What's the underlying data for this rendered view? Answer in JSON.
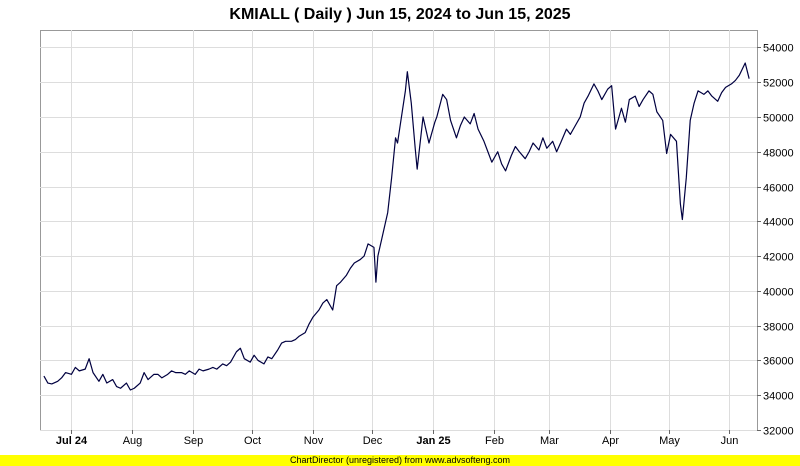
{
  "chart_data": {
    "type": "line",
    "title": "KMIALL ( Daily ) Jun 15, 2024 to Jun 15, 2025",
    "xlabel": "",
    "ylabel": "",
    "x_range": [
      "2024-06-15",
      "2025-06-15"
    ],
    "ylim": [
      32000,
      55000
    ],
    "y_ticks": [
      32000,
      34000,
      36000,
      38000,
      40000,
      42000,
      44000,
      46000,
      48000,
      50000,
      52000,
      54000
    ],
    "x_ticks": [
      {
        "date": "2024-07-01",
        "label": "Jul 24",
        "bold": true
      },
      {
        "date": "2024-08-01",
        "label": "Aug",
        "bold": false
      },
      {
        "date": "2024-09-01",
        "label": "Sep",
        "bold": false
      },
      {
        "date": "2024-10-01",
        "label": "Oct",
        "bold": false
      },
      {
        "date": "2024-11-01",
        "label": "Nov",
        "bold": false
      },
      {
        "date": "2024-12-01",
        "label": "Dec",
        "bold": false
      },
      {
        "date": "2025-01-01",
        "label": "Jan 25",
        "bold": true
      },
      {
        "date": "2025-02-01",
        "label": "Feb",
        "bold": false
      },
      {
        "date": "2025-03-01",
        "label": "Mar",
        "bold": false
      },
      {
        "date": "2025-04-01",
        "label": "Apr",
        "bold": false
      },
      {
        "date": "2025-05-01",
        "label": "May",
        "bold": false
      },
      {
        "date": "2025-06-01",
        "label": "Jun",
        "bold": false
      }
    ],
    "grid": true,
    "line_color": "#000040",
    "series": [
      {
        "points": [
          [
            "2024-06-17",
            35100
          ],
          [
            "2024-06-19",
            34700
          ],
          [
            "2024-06-21",
            34650
          ],
          [
            "2024-06-24",
            34800
          ],
          [
            "2024-06-26",
            35000
          ],
          [
            "2024-06-28",
            35300
          ],
          [
            "2024-07-01",
            35200
          ],
          [
            "2024-07-03",
            35600
          ],
          [
            "2024-07-05",
            35400
          ],
          [
            "2024-07-08",
            35500
          ],
          [
            "2024-07-10",
            36100
          ],
          [
            "2024-07-12",
            35300
          ],
          [
            "2024-07-15",
            34800
          ],
          [
            "2024-07-17",
            35200
          ],
          [
            "2024-07-19",
            34700
          ],
          [
            "2024-07-22",
            34900
          ],
          [
            "2024-07-24",
            34500
          ],
          [
            "2024-07-26",
            34400
          ],
          [
            "2024-07-29",
            34700
          ],
          [
            "2024-07-31",
            34300
          ],
          [
            "2024-08-02",
            34400
          ],
          [
            "2024-08-05",
            34700
          ],
          [
            "2024-08-07",
            35300
          ],
          [
            "2024-08-09",
            34900
          ],
          [
            "2024-08-12",
            35200
          ],
          [
            "2024-08-14",
            35200
          ],
          [
            "2024-08-16",
            35000
          ],
          [
            "2024-08-19",
            35200
          ],
          [
            "2024-08-21",
            35400
          ],
          [
            "2024-08-23",
            35300
          ],
          [
            "2024-08-26",
            35300
          ],
          [
            "2024-08-28",
            35200
          ],
          [
            "2024-08-30",
            35400
          ],
          [
            "2024-09-02",
            35200
          ],
          [
            "2024-09-04",
            35500
          ],
          [
            "2024-09-06",
            35400
          ],
          [
            "2024-09-09",
            35500
          ],
          [
            "2024-09-11",
            35600
          ],
          [
            "2024-09-13",
            35500
          ],
          [
            "2024-09-16",
            35800
          ],
          [
            "2024-09-18",
            35700
          ],
          [
            "2024-09-20",
            35900
          ],
          [
            "2024-09-23",
            36500
          ],
          [
            "2024-09-25",
            36700
          ],
          [
            "2024-09-27",
            36100
          ],
          [
            "2024-09-30",
            35900
          ],
          [
            "2024-10-02",
            36300
          ],
          [
            "2024-10-04",
            36000
          ],
          [
            "2024-10-07",
            35800
          ],
          [
            "2024-10-09",
            36200
          ],
          [
            "2024-10-11",
            36100
          ],
          [
            "2024-10-14",
            36600
          ],
          [
            "2024-10-16",
            37000
          ],
          [
            "2024-10-18",
            37100
          ],
          [
            "2024-10-21",
            37100
          ],
          [
            "2024-10-23",
            37200
          ],
          [
            "2024-10-25",
            37400
          ],
          [
            "2024-10-28",
            37600
          ],
          [
            "2024-10-30",
            38100
          ],
          [
            "2024-11-01",
            38500
          ],
          [
            "2024-11-04",
            38900
          ],
          [
            "2024-11-06",
            39300
          ],
          [
            "2024-11-08",
            39500
          ],
          [
            "2024-11-11",
            38900
          ],
          [
            "2024-11-13",
            40300
          ],
          [
            "2024-11-15",
            40500
          ],
          [
            "2024-11-18",
            40900
          ],
          [
            "2024-11-20",
            41300
          ],
          [
            "2024-11-22",
            41600
          ],
          [
            "2024-11-25",
            41800
          ],
          [
            "2024-11-27",
            42000
          ],
          [
            "2024-11-29",
            42700
          ],
          [
            "2024-12-02",
            42500
          ],
          [
            "2024-12-03",
            40500
          ],
          [
            "2024-12-04",
            42000
          ],
          [
            "2024-12-06",
            43000
          ],
          [
            "2024-12-09",
            44500
          ],
          [
            "2024-12-11",
            46500
          ],
          [
            "2024-12-13",
            48800
          ],
          [
            "2024-12-14",
            48500
          ],
          [
            "2024-12-16",
            50000
          ],
          [
            "2024-12-18",
            51500
          ],
          [
            "2024-12-19",
            52600
          ],
          [
            "2024-12-21",
            50800
          ],
          [
            "2024-12-23",
            48200
          ],
          [
            "2024-12-24",
            47000
          ],
          [
            "2024-12-26",
            49000
          ],
          [
            "2024-12-27",
            50000
          ],
          [
            "2024-12-30",
            48500
          ],
          [
            "2025-01-02",
            49700
          ],
          [
            "2025-01-03",
            50000
          ],
          [
            "2025-01-06",
            51300
          ],
          [
            "2025-01-08",
            51000
          ],
          [
            "2025-01-10",
            49800
          ],
          [
            "2025-01-13",
            48800
          ],
          [
            "2025-01-15",
            49500
          ],
          [
            "2025-01-17",
            50000
          ],
          [
            "2025-01-20",
            49600
          ],
          [
            "2025-01-22",
            50200
          ],
          [
            "2025-01-24",
            49300
          ],
          [
            "2025-01-27",
            48600
          ],
          [
            "2025-01-29",
            48000
          ],
          [
            "2025-01-31",
            47400
          ],
          [
            "2025-02-03",
            48000
          ],
          [
            "2025-02-05",
            47300
          ],
          [
            "2025-02-07",
            46900
          ],
          [
            "2025-02-10",
            47800
          ],
          [
            "2025-02-12",
            48300
          ],
          [
            "2025-02-14",
            48000
          ],
          [
            "2025-02-17",
            47600
          ],
          [
            "2025-02-19",
            48000
          ],
          [
            "2025-02-21",
            48500
          ],
          [
            "2025-02-24",
            48100
          ],
          [
            "2025-02-26",
            48800
          ],
          [
            "2025-02-28",
            48200
          ],
          [
            "2025-03-03",
            48600
          ],
          [
            "2025-03-05",
            48000
          ],
          [
            "2025-03-07",
            48500
          ],
          [
            "2025-03-10",
            49300
          ],
          [
            "2025-03-12",
            49000
          ],
          [
            "2025-03-14",
            49400
          ],
          [
            "2025-03-17",
            50000
          ],
          [
            "2025-03-19",
            50800
          ],
          [
            "2025-03-21",
            51200
          ],
          [
            "2025-03-24",
            51900
          ],
          [
            "2025-03-26",
            51500
          ],
          [
            "2025-03-28",
            51000
          ],
          [
            "2025-03-31",
            51600
          ],
          [
            "2025-04-02",
            51800
          ],
          [
            "2025-04-04",
            49300
          ],
          [
            "2025-04-07",
            50500
          ],
          [
            "2025-04-09",
            49700
          ],
          [
            "2025-04-11",
            51000
          ],
          [
            "2025-04-14",
            51200
          ],
          [
            "2025-04-16",
            50600
          ],
          [
            "2025-04-18",
            51000
          ],
          [
            "2025-04-21",
            51500
          ],
          [
            "2025-04-23",
            51300
          ],
          [
            "2025-04-25",
            50300
          ],
          [
            "2025-04-28",
            49800
          ],
          [
            "2025-04-30",
            47900
          ],
          [
            "2025-05-02",
            49000
          ],
          [
            "2025-05-05",
            48600
          ],
          [
            "2025-05-07",
            45000
          ],
          [
            "2025-05-08",
            44100
          ],
          [
            "2025-05-10",
            46500
          ],
          [
            "2025-05-12",
            49800
          ],
          [
            "2025-05-14",
            50800
          ],
          [
            "2025-05-16",
            51500
          ],
          [
            "2025-05-19",
            51300
          ],
          [
            "2025-05-21",
            51500
          ],
          [
            "2025-05-23",
            51200
          ],
          [
            "2025-05-26",
            50900
          ],
          [
            "2025-05-28",
            51400
          ],
          [
            "2025-05-30",
            51700
          ],
          [
            "2025-06-02",
            51900
          ],
          [
            "2025-06-04",
            52100
          ],
          [
            "2025-06-06",
            52400
          ],
          [
            "2025-06-09",
            53100
          ],
          [
            "2025-06-11",
            52200
          ]
        ]
      }
    ]
  },
  "footer": {
    "text": "ChartDirector (unregistered) from www.advsofteng.com"
  }
}
